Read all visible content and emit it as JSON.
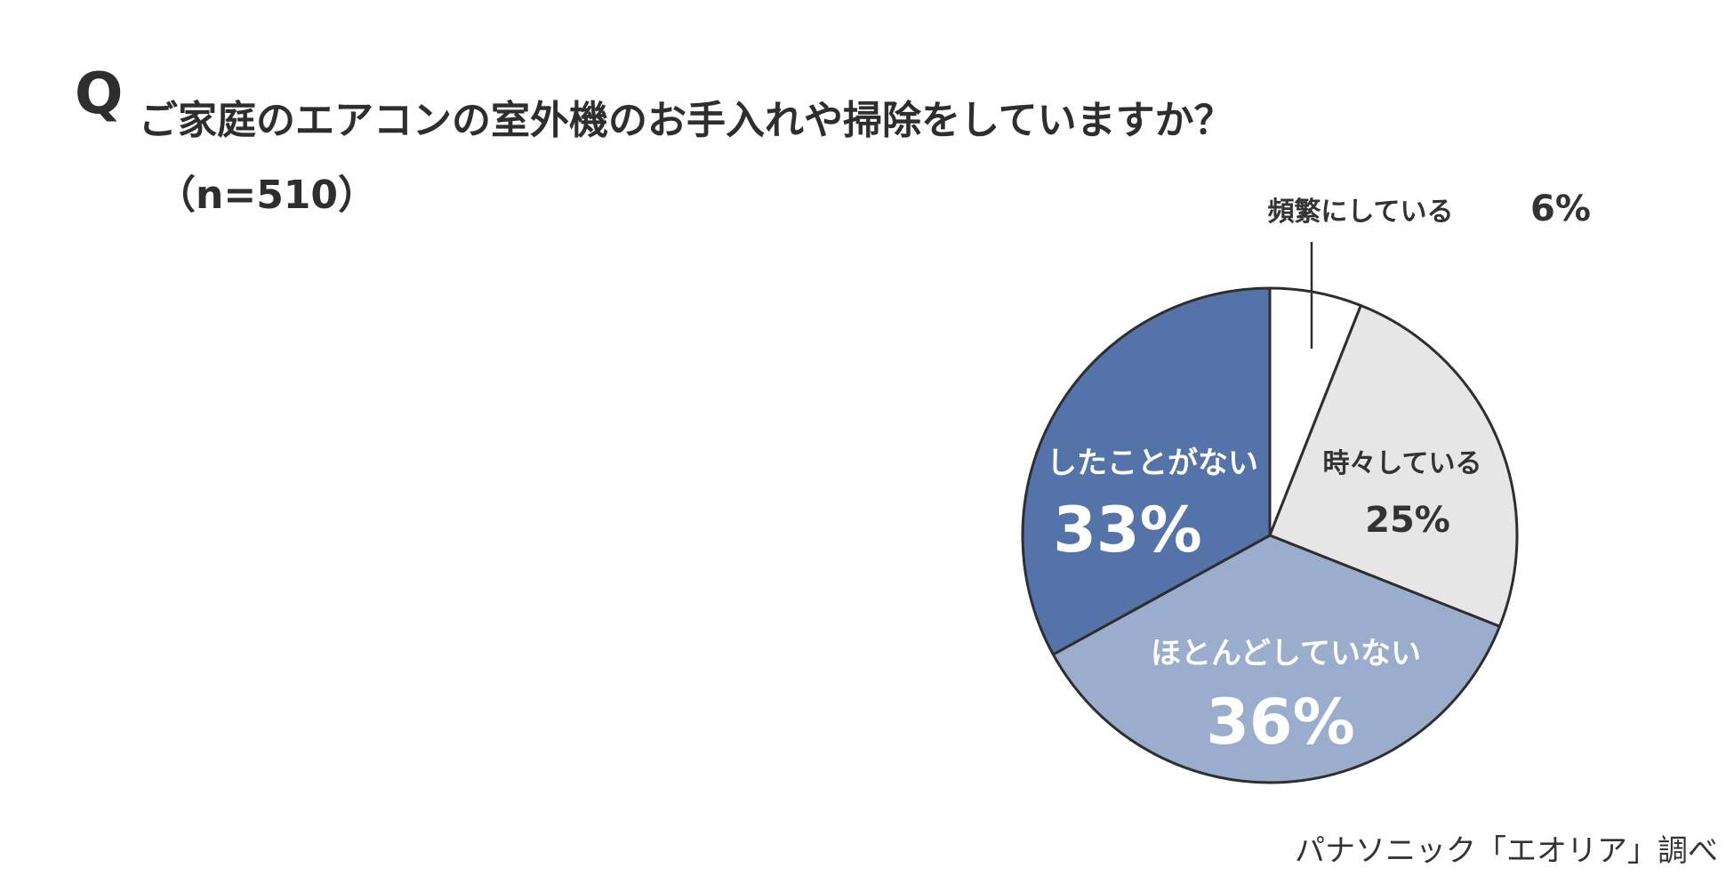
{
  "question": {
    "q_mark": "Q",
    "text": "ご家庭のエアコンの室外機のお手入れや掃除をしていますか？",
    "sample_size": "（n=510）"
  },
  "source": "パナソニック「エオリア」調べ",
  "chart_data": {
    "type": "pie",
    "title": "ご家庭のエアコンの室外機のお手入れや掃除をしていますか？",
    "start_angle_deg": 0,
    "direction": "clockwise",
    "slices": [
      {
        "label": "頻繁にしている",
        "value": 6,
        "value_label": "6%",
        "color": "#ffffff",
        "text_color": "#333333"
      },
      {
        "label": "時々している",
        "value": 25,
        "value_label": "25%",
        "color": "#e6e6e6",
        "text_color": "#333333"
      },
      {
        "label": "ほとんどしていない",
        "value": 36,
        "value_label": "36%",
        "color": "#9aadcc",
        "text_color": "#ffffff"
      },
      {
        "label": "したことがない",
        "value": 33,
        "value_label": "33%",
        "color": "#5473a8",
        "text_color": "#ffffff"
      }
    ],
    "border_color": "#2e2e2e",
    "legend": "none"
  }
}
